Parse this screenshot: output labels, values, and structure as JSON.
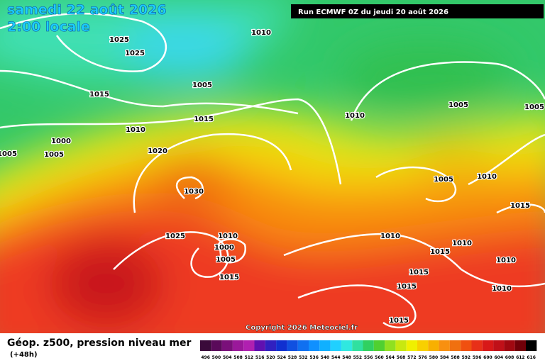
{
  "header": {
    "date": "samedi 22 août 2026",
    "time": "2:00 locale",
    "run": "Run ECMWF 0Z du jeudi 20 août 2026"
  },
  "isobar_labels": [
    "1025",
    "1025",
    "1010",
    "1015",
    "1005",
    "1015",
    "1010",
    "1000",
    "1005",
    "1005",
    "1020",
    "1030",
    "1025",
    "1010",
    "1000",
    "1005",
    "1015",
    "1010",
    "1005",
    "1005",
    "1010",
    "1005",
    "1015",
    "1010",
    "1010",
    "1015",
    "1010",
    "1015",
    "1015",
    "1010",
    "1015"
  ],
  "copyright": "Copyright 2026 Meteociel.fr",
  "legend": {
    "title": "Géop. z500, pression niveau mer",
    "lead": "(+48h)",
    "scale": [
      "496",
      "500",
      "504",
      "508",
      "512",
      "516",
      "520",
      "524",
      "528",
      "532",
      "536",
      "540",
      "544",
      "548",
      "552",
      "556",
      "560",
      "564",
      "568",
      "572",
      "576",
      "580",
      "584",
      "588",
      "592",
      "596",
      "600",
      "604",
      "608",
      "612",
      "616"
    ]
  }
}
